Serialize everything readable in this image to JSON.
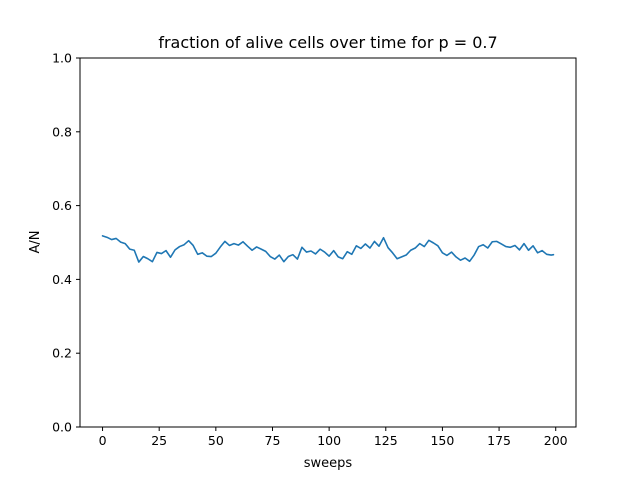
{
  "chart_data": {
    "type": "line",
    "title": "fraction of alive cells over time for p = 0.7",
    "xlabel": "sweeps",
    "ylabel": "A/N",
    "xlim": [
      -9.95,
      208.95
    ],
    "ylim": [
      0.0,
      1.0
    ],
    "xticks": [
      0,
      25,
      50,
      75,
      100,
      125,
      150,
      175,
      200
    ],
    "yticks": [
      0.0,
      0.2,
      0.4,
      0.6,
      0.8,
      1.0
    ],
    "xtick_labels": [
      "0",
      "25",
      "50",
      "75",
      "100",
      "125",
      "150",
      "175",
      "200"
    ],
    "ytick_labels": [
      "0.0",
      "0.2",
      "0.4",
      "0.6",
      "0.8",
      "1.0"
    ],
    "grid": false,
    "series": [
      {
        "color": "#1f77b4",
        "x": [
          0,
          2,
          4,
          6,
          8,
          10,
          12,
          14,
          16,
          18,
          20,
          22,
          24,
          26,
          28,
          30,
          32,
          34,
          36,
          38,
          40,
          42,
          44,
          46,
          48,
          50,
          52,
          54,
          56,
          58,
          60,
          62,
          64,
          66,
          68,
          70,
          72,
          74,
          76,
          78,
          80,
          82,
          84,
          86,
          88,
          90,
          92,
          94,
          96,
          98,
          100,
          102,
          104,
          106,
          108,
          110,
          112,
          114,
          116,
          118,
          120,
          122,
          124,
          126,
          128,
          130,
          132,
          134,
          136,
          138,
          140,
          142,
          144,
          146,
          148,
          150,
          152,
          154,
          156,
          158,
          160,
          162,
          164,
          166,
          168,
          170,
          172,
          174,
          176,
          178,
          180,
          182,
          184,
          186,
          188,
          190,
          192,
          194,
          196,
          198,
          199
        ],
        "values": [
          0.518,
          0.514,
          0.508,
          0.511,
          0.501,
          0.497,
          0.482,
          0.479,
          0.447,
          0.462,
          0.456,
          0.448,
          0.473,
          0.47,
          0.478,
          0.46,
          0.48,
          0.489,
          0.494,
          0.505,
          0.492,
          0.468,
          0.472,
          0.463,
          0.462,
          0.471,
          0.488,
          0.503,
          0.492,
          0.497,
          0.493,
          0.502,
          0.49,
          0.479,
          0.488,
          0.482,
          0.476,
          0.462,
          0.455,
          0.466,
          0.448,
          0.462,
          0.467,
          0.455,
          0.487,
          0.474,
          0.477,
          0.469,
          0.482,
          0.474,
          0.463,
          0.478,
          0.461,
          0.456,
          0.475,
          0.468,
          0.491,
          0.484,
          0.496,
          0.485,
          0.503,
          0.49,
          0.513,
          0.486,
          0.472,
          0.456,
          0.461,
          0.466,
          0.479,
          0.485,
          0.497,
          0.489,
          0.506,
          0.499,
          0.491,
          0.472,
          0.465,
          0.474,
          0.461,
          0.452,
          0.458,
          0.449,
          0.466,
          0.489,
          0.494,
          0.485,
          0.502,
          0.503,
          0.496,
          0.489,
          0.487,
          0.492,
          0.48,
          0.497,
          0.479,
          0.491,
          0.472,
          0.478,
          0.468,
          0.466,
          0.467
        ]
      }
    ]
  }
}
